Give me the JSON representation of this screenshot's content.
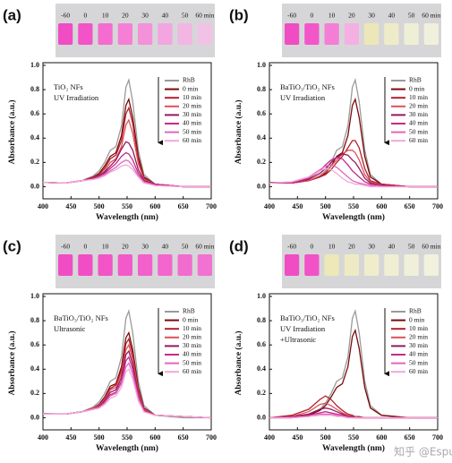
{
  "chart_data": [
    {
      "type": "line",
      "panel_label": "(a)",
      "annotations": [
        "TiO₂ NFs",
        "UV Irradiation"
      ],
      "xlabel": "Wavelength (nm)",
      "ylabel": "Absorbance (a.u.)",
      "photo": {
        "labels": [
          "-60",
          "0",
          "10",
          "20",
          "30",
          "40",
          "50",
          "60 min"
        ],
        "colors": [
          "#f04cc4",
          "#f254c8",
          "#f46ccf",
          "#f57fd5",
          "#f391d9",
          "#f2a5df",
          "#f2b6e3",
          "#f2c2e6"
        ]
      },
      "x": [
        400,
        440,
        470,
        490,
        500,
        510,
        520,
        530,
        540,
        548,
        553,
        560,
        570,
        580,
        600,
        650,
        700
      ],
      "xlim": [
        400,
        700
      ],
      "xticks": [
        400,
        450,
        500,
        550,
        600,
        650,
        700
      ],
      "ylim": [
        -0.1,
        1.0
      ],
      "yticks": [
        {
          "value": 0,
          "label": "0.0"
        },
        0.2,
        0.4,
        0.6,
        0.8,
        {
          "value": 1,
          "label": "1.0"
        }
      ],
      "series": [
        {
          "name": "RhB",
          "color": "#9a9a9a",
          "values": [
            0.035,
            0.03,
            0.05,
            0.09,
            0.13,
            0.2,
            0.3,
            0.33,
            0.5,
            0.82,
            0.88,
            0.7,
            0.3,
            0.1,
            0.02,
            0,
            0
          ]
        },
        {
          "name": "0 min",
          "color": "#7a0a0a",
          "values": [
            0.035,
            0.03,
            0.05,
            0.08,
            0.11,
            0.17,
            0.25,
            0.28,
            0.42,
            0.67,
            0.72,
            0.57,
            0.25,
            0.08,
            0.02,
            0,
            0
          ]
        },
        {
          "name": "10 min",
          "color": "#b3202a",
          "values": [
            0.035,
            0.03,
            0.05,
            0.08,
            0.1,
            0.15,
            0.23,
            0.26,
            0.38,
            0.6,
            0.65,
            0.52,
            0.22,
            0.07,
            0.02,
            0,
            0
          ]
        },
        {
          "name": "20 min",
          "color": "#e0505a",
          "values": [
            0.035,
            0.03,
            0.05,
            0.07,
            0.09,
            0.13,
            0.2,
            0.23,
            0.33,
            0.51,
            0.55,
            0.44,
            0.19,
            0.06,
            0.02,
            0,
            0
          ]
        },
        {
          "name": "30 min",
          "color": "#8e1c5e",
          "values": [
            0.035,
            0.03,
            0.05,
            0.07,
            0.09,
            0.12,
            0.17,
            0.22,
            0.31,
            0.37,
            0.36,
            0.3,
            0.14,
            0.05,
            0.02,
            0,
            0
          ]
        },
        {
          "name": "40 min",
          "color": "#c8288c",
          "values": [
            0.035,
            0.03,
            0.05,
            0.07,
            0.08,
            0.11,
            0.15,
            0.19,
            0.25,
            0.28,
            0.27,
            0.22,
            0.11,
            0.04,
            0.02,
            0,
            0
          ]
        },
        {
          "name": "50 min",
          "color": "#e066bc",
          "values": [
            0.035,
            0.03,
            0.05,
            0.06,
            0.08,
            0.1,
            0.13,
            0.16,
            0.2,
            0.22,
            0.21,
            0.17,
            0.09,
            0.04,
            0.01,
            0,
            0
          ]
        },
        {
          "name": "60 min",
          "color": "#f2a8d8",
          "values": [
            0.035,
            0.03,
            0.05,
            0.06,
            0.07,
            0.09,
            0.12,
            0.14,
            0.17,
            0.18,
            0.17,
            0.14,
            0.08,
            0.03,
            0.01,
            0,
            0
          ]
        }
      ]
    },
    {
      "type": "line",
      "panel_label": "(b)",
      "annotations": [
        "BaTiO₃/TiO₂ NFs",
        "UV Irradiation"
      ],
      "xlabel": "Wavelength (nm)",
      "ylabel": "Absorbance (a.u.)",
      "photo": {
        "labels": [
          "-60",
          "0",
          "10",
          "20",
          "30",
          "40",
          "50",
          "60 min"
        ],
        "colors": [
          "#f04cc4",
          "#f256c9",
          "#f47ed6",
          "#f5b0e2",
          "#ede6b8",
          "#eeecc8",
          "#efefd6",
          "#f0f0dc"
        ]
      },
      "x": [
        400,
        440,
        470,
        490,
        500,
        510,
        520,
        530,
        540,
        548,
        553,
        560,
        570,
        580,
        600,
        650,
        700
      ],
      "xlim": [
        400,
        700
      ],
      "xticks": [
        400,
        450,
        500,
        550,
        600,
        650,
        700
      ],
      "ylim": [
        -0.1,
        1.0
      ],
      "yticks": [
        {
          "value": 0,
          "label": "0.0"
        },
        0.2,
        0.4,
        0.6,
        0.8,
        {
          "value": 1,
          "label": "1.0"
        }
      ],
      "series": [
        {
          "name": "RhB",
          "color": "#9a9a9a",
          "values": [
            0.035,
            0.03,
            0.05,
            0.09,
            0.13,
            0.2,
            0.3,
            0.33,
            0.5,
            0.82,
            0.88,
            0.7,
            0.3,
            0.1,
            0.02,
            0,
            0
          ]
        },
        {
          "name": "0 min",
          "color": "#7a0a0a",
          "values": [
            0.035,
            0.03,
            0.05,
            0.08,
            0.11,
            0.17,
            0.25,
            0.28,
            0.42,
            0.67,
            0.72,
            0.57,
            0.25,
            0.08,
            0.02,
            0,
            0
          ]
        },
        {
          "name": "10 min",
          "color": "#b3202a",
          "values": [
            0.03,
            0.03,
            0.05,
            0.08,
            0.1,
            0.14,
            0.2,
            0.25,
            0.32,
            0.38,
            0.38,
            0.32,
            0.15,
            0.05,
            0.02,
            0,
            0
          ]
        },
        {
          "name": "20 min",
          "color": "#e0505a",
          "values": [
            0.03,
            0.03,
            0.05,
            0.09,
            0.12,
            0.17,
            0.22,
            0.27,
            0.3,
            0.3,
            0.28,
            0.22,
            0.1,
            0.04,
            0.01,
            0,
            0
          ]
        },
        {
          "name": "30 min",
          "color": "#8e1c5e",
          "values": [
            0.03,
            0.03,
            0.06,
            0.11,
            0.15,
            0.2,
            0.24,
            0.27,
            0.26,
            0.22,
            0.2,
            0.15,
            0.07,
            0.03,
            0.01,
            0,
            0
          ]
        },
        {
          "name": "40 min",
          "color": "#c8288c",
          "values": [
            0.03,
            0.03,
            0.07,
            0.13,
            0.18,
            0.22,
            0.24,
            0.23,
            0.18,
            0.13,
            0.11,
            0.08,
            0.04,
            0.02,
            0.01,
            0,
            0
          ]
        },
        {
          "name": "50 min",
          "color": "#e066bc",
          "values": [
            0.03,
            0.04,
            0.08,
            0.14,
            0.17,
            0.18,
            0.16,
            0.12,
            0.08,
            0.05,
            0.04,
            0.03,
            0.02,
            0.01,
            0,
            0,
            0
          ]
        },
        {
          "name": "60 min",
          "color": "#f2a8d8",
          "values": [
            0.03,
            0.04,
            0.08,
            0.13,
            0.15,
            0.14,
            0.11,
            0.07,
            0.04,
            0.03,
            0.02,
            0.02,
            0.01,
            0,
            0,
            0,
            0
          ]
        }
      ]
    },
    {
      "type": "line",
      "panel_label": "(c)",
      "annotations": [
        "BaTiO₃/TiO₂ NFs",
        "Ultrasonic"
      ],
      "xlabel": "Wavelength (nm)",
      "ylabel": "Absorbance (a.u.)",
      "photo": {
        "labels": [
          "-60",
          "0",
          "10",
          "20",
          "30",
          "40",
          "50",
          "60 min"
        ],
        "colors": [
          "#f04cc4",
          "#f14ec5",
          "#f254c7",
          "#f25ac9",
          "#f260cb",
          "#f266cd",
          "#f26ccf",
          "#f272d1"
        ]
      },
      "x": [
        400,
        440,
        470,
        490,
        500,
        510,
        520,
        530,
        540,
        548,
        553,
        560,
        570,
        580,
        600,
        650,
        700
      ],
      "xlim": [
        400,
        700
      ],
      "xticks": [
        400,
        450,
        500,
        550,
        600,
        650,
        700
      ],
      "ylim": [
        -0.1,
        1.0
      ],
      "yticks": [
        {
          "value": 0,
          "label": "0.0"
        },
        0.2,
        0.4,
        0.6,
        0.8,
        {
          "value": 1,
          "label": "1.0"
        }
      ],
      "series": [
        {
          "name": "RhB",
          "color": "#9a9a9a",
          "values": [
            0.035,
            0.03,
            0.05,
            0.09,
            0.13,
            0.2,
            0.3,
            0.33,
            0.5,
            0.82,
            0.88,
            0.7,
            0.3,
            0.1,
            0.02,
            0,
            0
          ]
        },
        {
          "name": "0 min",
          "color": "#7a0a0a",
          "values": [
            0.03,
            0.03,
            0.05,
            0.08,
            0.11,
            0.17,
            0.26,
            0.28,
            0.42,
            0.66,
            0.7,
            0.56,
            0.25,
            0.08,
            0.02,
            0.01,
            0
          ]
        },
        {
          "name": "10 min",
          "color": "#b3202a",
          "values": [
            0.03,
            0.03,
            0.05,
            0.08,
            0.1,
            0.16,
            0.24,
            0.27,
            0.39,
            0.61,
            0.65,
            0.52,
            0.23,
            0.07,
            0.02,
            0.01,
            0
          ]
        },
        {
          "name": "20 min",
          "color": "#e0505a",
          "values": [
            0.03,
            0.03,
            0.05,
            0.08,
            0.1,
            0.15,
            0.23,
            0.25,
            0.36,
            0.56,
            0.6,
            0.48,
            0.21,
            0.07,
            0.02,
            0.01,
            0
          ]
        },
        {
          "name": "30 min",
          "color": "#8e1c5e",
          "values": [
            0.03,
            0.03,
            0.05,
            0.07,
            0.09,
            0.14,
            0.21,
            0.23,
            0.33,
            0.52,
            0.55,
            0.44,
            0.19,
            0.06,
            0.02,
            0.01,
            0
          ]
        },
        {
          "name": "40 min",
          "color": "#c8288c",
          "values": [
            0.03,
            0.03,
            0.05,
            0.07,
            0.09,
            0.13,
            0.19,
            0.21,
            0.3,
            0.47,
            0.5,
            0.4,
            0.18,
            0.06,
            0.02,
            0.01,
            0
          ]
        },
        {
          "name": "50 min",
          "color": "#e066bc",
          "values": [
            0.03,
            0.03,
            0.05,
            0.07,
            0.08,
            0.12,
            0.18,
            0.2,
            0.28,
            0.42,
            0.45,
            0.36,
            0.16,
            0.05,
            0.02,
            0.01,
            0
          ]
        },
        {
          "name": "60 min",
          "color": "#f2a8d8",
          "values": [
            0.03,
            0.03,
            0.05,
            0.07,
            0.08,
            0.11,
            0.16,
            0.18,
            0.25,
            0.38,
            0.4,
            0.32,
            0.14,
            0.05,
            0.02,
            0.01,
            0
          ]
        }
      ]
    },
    {
      "type": "line",
      "panel_label": "(d)",
      "annotations": [
        "BaTiO₃/TiO₂ NFs",
        "UV Irradiation",
        "+Ultrasonic"
      ],
      "xlabel": "Wavelength (nm)",
      "ylabel": "Absorbance (a.u.)",
      "photo": {
        "labels": [
          "-60",
          "0",
          "10",
          "20",
          "30",
          "40",
          "50",
          "60 min"
        ],
        "colors": [
          "#f04cc4",
          "#f252c7",
          "#ece8b8",
          "#eeeac4",
          "#efedcc",
          "#f0efd4",
          "#f0f0da",
          "#f1f1de"
        ]
      },
      "x": [
        400,
        440,
        470,
        490,
        500,
        510,
        520,
        530,
        540,
        548,
        553,
        560,
        570,
        580,
        600,
        650,
        700
      ],
      "xlim": [
        400,
        700
      ],
      "xticks": [
        400,
        450,
        500,
        550,
        600,
        650,
        700
      ],
      "ylim": [
        -0.1,
        1.0
      ],
      "yticks": [
        {
          "value": 0,
          "label": "0.0"
        },
        0.2,
        0.4,
        0.6,
        0.8,
        {
          "value": 1,
          "label": "1.0"
        }
      ],
      "series": [
        {
          "name": "RhB",
          "color": "#9a9a9a",
          "values": [
            0,
            0,
            0.02,
            0.07,
            0.12,
            0.2,
            0.3,
            0.33,
            0.5,
            0.82,
            0.88,
            0.7,
            0.3,
            0.1,
            0.02,
            0,
            0
          ]
        },
        {
          "name": "0 min",
          "color": "#7a0a0a",
          "values": [
            0,
            0,
            0.02,
            0.06,
            0.1,
            0.17,
            0.25,
            0.28,
            0.42,
            0.67,
            0.72,
            0.57,
            0.25,
            0.08,
            0.02,
            0,
            0
          ]
        },
        {
          "name": "10 min",
          "color": "#b3202a",
          "values": [
            0,
            0.02,
            0.07,
            0.15,
            0.18,
            0.15,
            0.1,
            0.06,
            0.03,
            0.02,
            0.01,
            0.01,
            0,
            0,
            0,
            0,
            0
          ]
        },
        {
          "name": "20 min",
          "color": "#e0505a",
          "values": [
            0,
            0.01,
            0.05,
            0.11,
            0.12,
            0.1,
            0.07,
            0.04,
            0.02,
            0.01,
            0.01,
            0,
            0,
            0,
            0,
            0,
            0
          ]
        },
        {
          "name": "30 min",
          "color": "#8e1c5e",
          "values": [
            0,
            0.01,
            0.03,
            0.07,
            0.08,
            0.07,
            0.05,
            0.03,
            0.01,
            0.01,
            0,
            0,
            0,
            0,
            0,
            0,
            0
          ]
        },
        {
          "name": "40 min",
          "color": "#c8288c",
          "values": [
            0,
            0.01,
            0.02,
            0.04,
            0.05,
            0.04,
            0.03,
            0.02,
            0.01,
            0,
            0,
            0,
            0,
            0,
            0,
            0,
            0
          ]
        },
        {
          "name": "50 min",
          "color": "#e066bc",
          "values": [
            0,
            0,
            0.01,
            0.03,
            0.03,
            0.03,
            0.02,
            0.01,
            0,
            0,
            0,
            0,
            0,
            0,
            0,
            0,
            0
          ]
        },
        {
          "name": "60 min",
          "color": "#f2a8d8",
          "values": [
            0,
            0,
            0.01,
            0.02,
            0.02,
            0.02,
            0.01,
            0.01,
            0,
            0,
            0,
            0,
            0,
            0,
            0,
            0,
            0
          ]
        }
      ]
    }
  ],
  "watermark": "知乎 @Espun"
}
